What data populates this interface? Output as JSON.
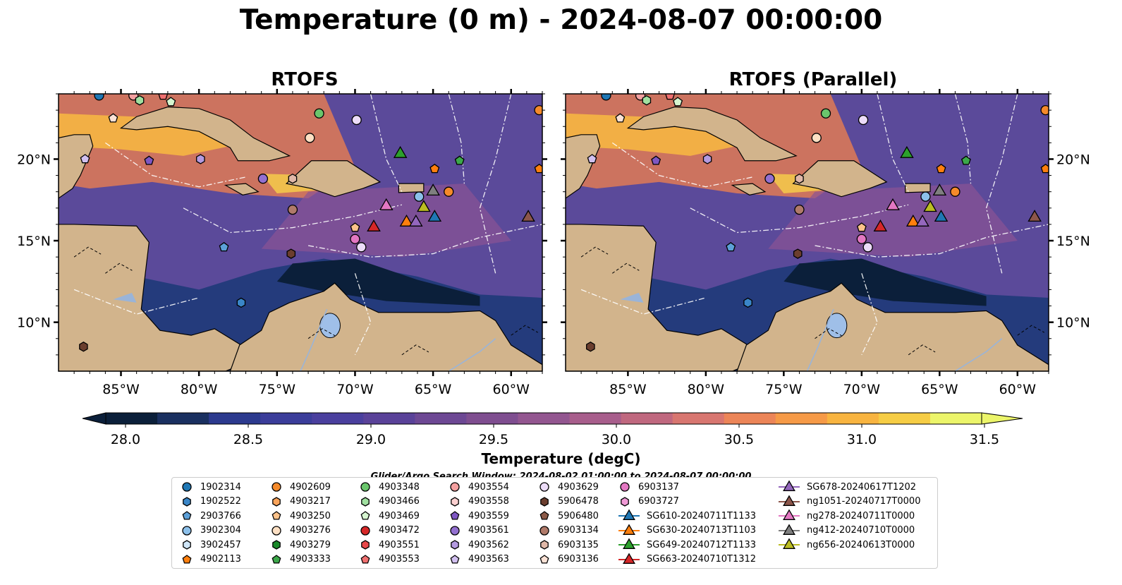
{
  "suptitle": "Temperature (0 m) - 2024-08-07 00:00:00",
  "chart_data": {
    "type": "heatmap",
    "title": "Temperature (0 m) - 2024-08-07 00:00:00",
    "panels": [
      {
        "title": "RTOFS"
      },
      {
        "title": "RTOFS (Parallel)"
      }
    ],
    "xlim": [
      -89,
      -58
    ],
    "ylim": [
      7,
      24
    ],
    "x_ticks": [
      {
        "value": -85,
        "label": "85°W"
      },
      {
        "value": -80,
        "label": "80°W"
      },
      {
        "value": -75,
        "label": "75°W"
      },
      {
        "value": -70,
        "label": "70°W"
      },
      {
        "value": -65,
        "label": "65°W"
      },
      {
        "value": -60,
        "label": "60°W"
      }
    ],
    "y_ticks": [
      {
        "value": 10,
        "label": "10°N"
      },
      {
        "value": 15,
        "label": "15°N"
      },
      {
        "value": 20,
        "label": "20°N"
      }
    ],
    "colorbar": {
      "label": "Temperature (degC)",
      "min": 28.0,
      "max": 31.5,
      "extend": "both",
      "tick_labels": [
        "28.0",
        "28.5",
        "29.0",
        "29.5",
        "30.0",
        "30.5",
        "31.0",
        "31.5"
      ],
      "colors": [
        "#0b1f3a",
        "#1a3060",
        "#2c3a8e",
        "#3b3d9a",
        "#4a3f9e",
        "#5a4299",
        "#6d4894",
        "#7f4e90",
        "#935690",
        "#a85e8c",
        "#c0687f",
        "#d87670",
        "#ec8558",
        "#f69a47",
        "#f8b440",
        "#f6cd45",
        "#ecf56a"
      ]
    },
    "colors": {
      "land": "#d2b48c",
      "lake": "#9fbfe8",
      "sea_dark": "#0b1f3a",
      "sea_mid": "#5b4a9a",
      "sea_warm": "#f0a040"
    }
  },
  "search_window": "Glider/Argo Search Window: 2024-08-02 01:00:00 to 2024-08-07 00:00:00",
  "legend": {
    "columns": [
      [
        {
          "label": "1902314",
          "shape": "circle",
          "color": "#1f77b4"
        },
        {
          "label": "1902522",
          "shape": "hexagon",
          "color": "#3a86c8"
        },
        {
          "label": "2903766",
          "shape": "pentagon",
          "color": "#5ca0d8"
        },
        {
          "label": "3902304",
          "shape": "circle",
          "color": "#8cc0ea"
        },
        {
          "label": "3902457",
          "shape": "hexagon",
          "color": "#cfe6f8"
        },
        {
          "label": "4902113",
          "shape": "pentagon",
          "color": "#ff7f0e"
        }
      ],
      [
        {
          "label": "4902609",
          "shape": "circle",
          "color": "#f58a2a"
        },
        {
          "label": "4903217",
          "shape": "hexagon",
          "color": "#fba45a"
        },
        {
          "label": "4903250",
          "shape": "pentagon",
          "color": "#fcc28a"
        },
        {
          "label": "4903276",
          "shape": "circle",
          "color": "#fde0c4"
        },
        {
          "label": "4903279",
          "shape": "hexagon",
          "color": "#1a8a2a"
        },
        {
          "label": "4903333",
          "shape": "pentagon",
          "color": "#3ca84a"
        }
      ],
      [
        {
          "label": "4903348",
          "shape": "circle",
          "color": "#6ac66c"
        },
        {
          "label": "4903466",
          "shape": "hexagon",
          "color": "#a0e0a0"
        },
        {
          "label": "4903469",
          "shape": "pentagon",
          "color": "#d6f5d0"
        },
        {
          "label": "4903472",
          "shape": "circle",
          "color": "#d62728"
        },
        {
          "label": "4903551",
          "shape": "hexagon",
          "color": "#e8484a"
        },
        {
          "label": "4903553",
          "shape": "pentagon",
          "color": "#f07070"
        }
      ],
      [
        {
          "label": "4903554",
          "shape": "circle",
          "color": "#f4a0a0"
        },
        {
          "label": "4903558",
          "shape": "hexagon",
          "color": "#fbd0d0"
        },
        {
          "label": "4903559",
          "shape": "pentagon",
          "color": "#7e57c2"
        },
        {
          "label": "4903561",
          "shape": "circle",
          "color": "#9370d0"
        },
        {
          "label": "4903562",
          "shape": "hexagon",
          "color": "#b49ae0"
        },
        {
          "label": "4903563",
          "shape": "pentagon",
          "color": "#d2c0f0"
        }
      ],
      [
        {
          "label": "4903629",
          "shape": "circle",
          "color": "#ecdcf8"
        },
        {
          "label": "5906478",
          "shape": "hexagon",
          "color": "#6b3e2e"
        },
        {
          "label": "5906480",
          "shape": "pentagon",
          "color": "#8c5a48"
        },
        {
          "label": "6903134",
          "shape": "circle",
          "color": "#b07a6a"
        },
        {
          "label": "6903135",
          "shape": "hexagon",
          "color": "#e0b8a8"
        },
        {
          "label": "6903136",
          "shape": "pentagon",
          "color": "#fbe2d6"
        }
      ],
      [
        {
          "label": "6903137",
          "shape": "circle",
          "color": "#e377c2"
        },
        {
          "label": "6903727",
          "shape": "hexagon",
          "color": "#f09ad6"
        },
        {
          "label": "SG610-20240711T1133",
          "shape": "triangle",
          "color": "#1f77b4"
        },
        {
          "label": "SG630-20240713T1103",
          "shape": "triangle",
          "color": "#ff7f0e"
        },
        {
          "label": "SG649-20240712T1133",
          "shape": "triangle",
          "color": "#2ca02c"
        },
        {
          "label": "SG663-20240710T1312",
          "shape": "triangle",
          "color": "#d62728"
        }
      ],
      [
        {
          "label": "SG678-20240617T1202",
          "shape": "triangle",
          "color": "#9467bd"
        },
        {
          "label": "ng1051-20240717T0000",
          "shape": "triangle",
          "color": "#8c564b"
        },
        {
          "label": "ng278-20240711T0000",
          "shape": "triangle",
          "color": "#e377c2"
        },
        {
          "label": "ng412-20240710T0000",
          "shape": "triangle",
          "color": "#7f7f7f"
        },
        {
          "label": "ng656-20240613T0000",
          "shape": "triangle",
          "color": "#bcbd22"
        }
      ]
    ]
  },
  "markers": [
    {
      "id": "1902314",
      "lon": -86.4,
      "lat": 23.9
    },
    {
      "id": "6903136",
      "lon": -85.5,
      "lat": 22.5
    },
    {
      "id": "4903554",
      "lon": -84.2,
      "lat": 23.9
    },
    {
      "id": "4903466",
      "lon": -83.8,
      "lat": 23.6
    },
    {
      "id": "4903553",
      "lon": -82.3,
      "lat": 23.9
    },
    {
      "id": "4903469",
      "lon": -81.8,
      "lat": 23.5
    },
    {
      "id": "4903563",
      "lon": -87.3,
      "lat": 20.0
    },
    {
      "id": "4903559",
      "lon": -83.2,
      "lat": 19.9
    },
    {
      "id": "4903562",
      "lon": -79.9,
      "lat": 20.0
    },
    {
      "id": "4903561",
      "lon": -75.9,
      "lat": 18.8
    },
    {
      "id": "6903135",
      "lon": -74.0,
      "lat": 18.8
    },
    {
      "id": "4903348",
      "lon": -72.3,
      "lat": 22.8
    },
    {
      "id": "4903276",
      "lon": -72.9,
      "lat": 21.3
    },
    {
      "id": "4903629",
      "lon": -69.9,
      "lat": 22.4
    },
    {
      "id": "SG649-20240712T1133",
      "lon": -67.1,
      "lat": 20.4
    },
    {
      "id": "4902113",
      "lon": -64.9,
      "lat": 19.4
    },
    {
      "id": "4903333",
      "lon": -63.3,
      "lat": 19.9
    },
    {
      "id": "4902609",
      "lon": -64.0,
      "lat": 18.0
    },
    {
      "id": "ng412-20240710T0000",
      "lon": -65.0,
      "lat": 18.1
    },
    {
      "id": "3902304",
      "lon": -65.9,
      "lat": 17.7
    },
    {
      "id": "ng278-20240711T0000",
      "lon": -68.0,
      "lat": 17.2
    },
    {
      "id": "ng656-20240613T0000",
      "lon": -65.6,
      "lat": 17.1
    },
    {
      "id": "SG610-20240711T1133",
      "lon": -64.9,
      "lat": 16.5
    },
    {
      "id": "SG630-20240713T1103",
      "lon": -66.7,
      "lat": 16.2
    },
    {
      "id": "SG678-20240617T1202",
      "lon": -66.1,
      "lat": 16.2
    },
    {
      "id": "SG663-20240710T1312",
      "lon": -68.8,
      "lat": 15.9
    },
    {
      "id": "6903134",
      "lon": -74.0,
      "lat": 16.9
    },
    {
      "id": "6903137",
      "lon": -70.0,
      "lat": 15.1
    },
    {
      "id": "4903629b",
      "lon": -69.6,
      "lat": 14.6
    },
    {
      "id": "4903250",
      "lon": -70.0,
      "lat": 15.8
    },
    {
      "id": "2903766",
      "lon": -78.4,
      "lat": 14.6
    },
    {
      "id": "5906478b",
      "lon": -74.1,
      "lat": 14.2
    },
    {
      "id": "1902522",
      "lon": -77.3,
      "lat": 11.2
    },
    {
      "id": "5906478",
      "lon": -87.4,
      "lat": 8.5
    },
    {
      "id": "ng1051-20240717T0000",
      "lon": -58.9,
      "lat": 16.5
    },
    {
      "id": "4902609b",
      "lon": -58.2,
      "lat": 23.0
    },
    {
      "id": "4902113b",
      "lon": -58.2,
      "lat": 19.4
    }
  ]
}
